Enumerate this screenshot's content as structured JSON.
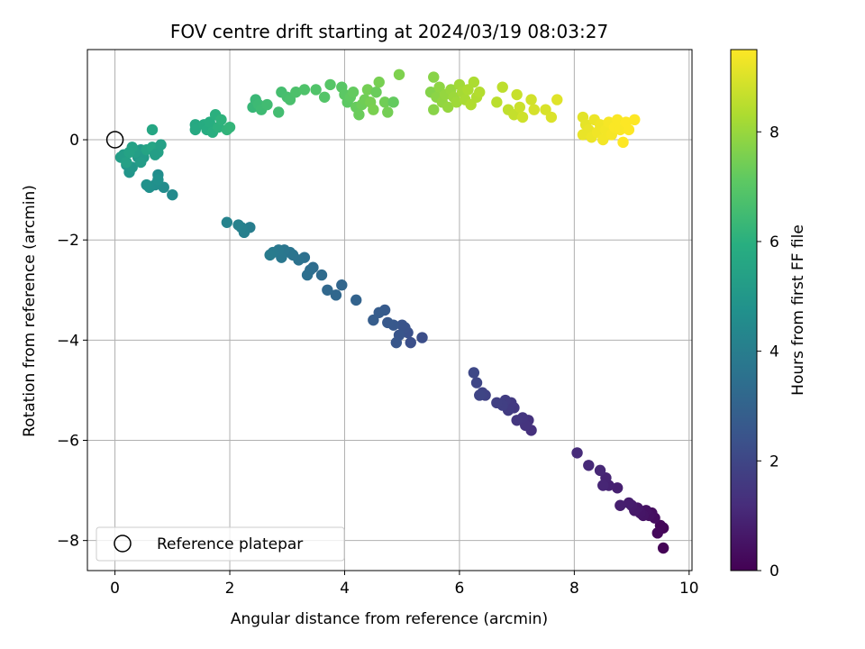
{
  "chart_data": {
    "type": "scatter",
    "title": "FOV centre drift starting at 2024/03/19 08:03:27",
    "xlabel": "Angular distance from reference (arcmin)",
    "ylabel": "Rotation from reference (arcmin)",
    "xlim": [
      -0.48,
      10.05
    ],
    "ylim": [
      -8.6,
      1.8
    ],
    "x_ticks": [
      0,
      2,
      4,
      6,
      8,
      10
    ],
    "y_ticks": [
      -8,
      -6,
      -4,
      -2,
      0
    ],
    "grid": true,
    "legend": {
      "location": "lower-left",
      "entries": [
        "Reference platepar"
      ]
    },
    "reference_point": {
      "x": 0,
      "y": 0
    },
    "colorbar": {
      "label": "Hours from first FF file",
      "ticks": [
        0,
        2,
        4,
        6,
        8
      ],
      "range": [
        0,
        9.5
      ],
      "colormap": "viridis"
    },
    "points_columns": [
      "x",
      "y",
      "hours"
    ],
    "points": [
      [
        9.55,
        -8.15,
        0.05
      ],
      [
        9.55,
        -7.75,
        0.1
      ],
      [
        9.5,
        -7.7,
        0.15
      ],
      [
        9.45,
        -7.85,
        0.2
      ],
      [
        9.4,
        -7.55,
        0.3
      ],
      [
        9.35,
        -7.45,
        0.35
      ],
      [
        9.3,
        -7.5,
        0.4
      ],
      [
        9.25,
        -7.4,
        0.45
      ],
      [
        9.2,
        -7.5,
        0.5
      ],
      [
        9.15,
        -7.45,
        0.55
      ],
      [
        9.1,
        -7.35,
        0.6
      ],
      [
        9.05,
        -7.4,
        0.65
      ],
      [
        9.0,
        -7.3,
        0.7
      ],
      [
        8.95,
        -7.25,
        0.75
      ],
      [
        8.8,
        -7.3,
        0.8
      ],
      [
        8.75,
        -6.95,
        0.85
      ],
      [
        8.6,
        -6.9,
        0.9
      ],
      [
        8.55,
        -6.75,
        0.95
      ],
      [
        8.5,
        -6.9,
        1.0
      ],
      [
        8.45,
        -6.6,
        1.05
      ],
      [
        8.25,
        -6.5,
        1.1
      ],
      [
        8.05,
        -6.25,
        1.15
      ],
      [
        7.25,
        -5.8,
        1.3
      ],
      [
        7.2,
        -5.6,
        1.35
      ],
      [
        7.15,
        -5.7,
        1.4
      ],
      [
        7.1,
        -5.55,
        1.45
      ],
      [
        7.0,
        -5.6,
        1.5
      ],
      [
        6.95,
        -5.35,
        1.55
      ],
      [
        6.9,
        -5.25,
        1.6
      ],
      [
        6.85,
        -5.4,
        1.65
      ],
      [
        6.8,
        -5.2,
        1.7
      ],
      [
        6.75,
        -5.3,
        1.75
      ],
      [
        6.65,
        -5.25,
        1.8
      ],
      [
        6.45,
        -5.1,
        1.85
      ],
      [
        6.4,
        -5.05,
        1.9
      ],
      [
        6.35,
        -5.1,
        1.95
      ],
      [
        6.3,
        -4.85,
        2.0
      ],
      [
        6.25,
        -4.65,
        2.05
      ],
      [
        5.15,
        -4.05,
        2.3
      ],
      [
        5.1,
        -3.85,
        2.35
      ],
      [
        5.05,
        -3.75,
        2.4
      ],
      [
        5.0,
        -3.7,
        2.45
      ],
      [
        4.95,
        -3.9,
        2.5
      ],
      [
        4.9,
        -4.05,
        2.55
      ],
      [
        4.85,
        -3.7,
        2.6
      ],
      [
        4.75,
        -3.65,
        2.65
      ],
      [
        4.7,
        -3.4,
        2.7
      ],
      [
        4.6,
        -3.45,
        2.75
      ],
      [
        4.5,
        -3.6,
        2.8
      ],
      [
        5.35,
        -3.95,
        2.25
      ],
      [
        4.2,
        -3.2,
        3.0
      ],
      [
        3.95,
        -2.9,
        3.1
      ],
      [
        3.85,
        -3.1,
        3.15
      ],
      [
        3.7,
        -3.0,
        3.2
      ],
      [
        3.6,
        -2.7,
        3.3
      ],
      [
        3.45,
        -2.55,
        3.35
      ],
      [
        3.4,
        -2.6,
        3.4
      ],
      [
        3.35,
        -2.7,
        3.45
      ],
      [
        3.3,
        -2.35,
        3.5
      ],
      [
        3.2,
        -2.4,
        3.55
      ],
      [
        3.1,
        -2.3,
        3.6
      ],
      [
        3.05,
        -2.25,
        3.65
      ],
      [
        2.95,
        -2.2,
        3.7
      ],
      [
        2.9,
        -2.35,
        3.75
      ],
      [
        2.85,
        -2.2,
        3.8
      ],
      [
        2.75,
        -2.25,
        3.85
      ],
      [
        2.7,
        -2.3,
        3.9
      ],
      [
        2.35,
        -1.75,
        4.0
      ],
      [
        2.25,
        -1.85,
        4.05
      ],
      [
        2.2,
        -1.75,
        4.1
      ],
      [
        2.15,
        -1.7,
        4.15
      ],
      [
        1.95,
        -1.65,
        4.2
      ],
      [
        1.0,
        -1.1,
        4.5
      ],
      [
        0.85,
        -0.95,
        4.55
      ],
      [
        0.75,
        -0.7,
        4.6
      ],
      [
        0.7,
        -0.9,
        4.65
      ],
      [
        0.6,
        -0.95,
        4.7
      ],
      [
        0.75,
        -0.8,
        4.75
      ],
      [
        0.55,
        -0.9,
        4.8
      ],
      [
        0.25,
        -0.65,
        4.9
      ],
      [
        0.2,
        -0.5,
        4.95
      ],
      [
        0.3,
        -0.55,
        5.0
      ],
      [
        0.4,
        -0.35,
        5.05
      ],
      [
        0.45,
        -0.2,
        5.1
      ],
      [
        0.5,
        -0.35,
        5.15
      ],
      [
        0.15,
        -0.3,
        5.2
      ],
      [
        0.1,
        -0.35,
        5.25
      ],
      [
        0.35,
        -0.25,
        5.3
      ],
      [
        0.2,
        -0.45,
        5.35
      ],
      [
        0.3,
        -0.15,
        5.4
      ],
      [
        0.25,
        -0.25,
        5.45
      ],
      [
        0.45,
        -0.45,
        5.2
      ],
      [
        0.55,
        -0.2,
        5.5
      ],
      [
        0.65,
        -0.15,
        5.55
      ],
      [
        0.75,
        -0.25,
        5.4
      ],
      [
        0.8,
        -0.1,
        5.35
      ],
      [
        0.65,
        0.2,
        5.6
      ],
      [
        0.7,
        -0.3,
        5.3
      ],
      [
        1.4,
        0.3,
        5.7
      ],
      [
        1.4,
        0.2,
        5.75
      ],
      [
        1.55,
        0.3,
        5.8
      ],
      [
        1.6,
        0.2,
        5.85
      ],
      [
        1.65,
        0.35,
        5.9
      ],
      [
        1.7,
        0.15,
        5.95
      ],
      [
        1.75,
        0.5,
        6.0
      ],
      [
        1.8,
        0.25,
        6.05
      ],
      [
        1.85,
        0.4,
        6.1
      ],
      [
        1.95,
        0.2,
        6.15
      ],
      [
        2.0,
        0.25,
        6.2
      ],
      [
        2.4,
        0.65,
        6.3
      ],
      [
        2.45,
        0.8,
        6.35
      ],
      [
        2.5,
        0.7,
        6.4
      ],
      [
        2.55,
        0.6,
        6.45
      ],
      [
        2.65,
        0.7,
        6.5
      ],
      [
        2.85,
        0.55,
        6.55
      ],
      [
        2.9,
        0.95,
        6.6
      ],
      [
        3.0,
        0.85,
        6.65
      ],
      [
        3.05,
        0.8,
        6.7
      ],
      [
        3.15,
        0.95,
        6.75
      ],
      [
        3.3,
        1.0,
        6.8
      ],
      [
        3.5,
        1.0,
        6.85
      ],
      [
        3.65,
        0.85,
        6.9
      ],
      [
        3.75,
        1.1,
        6.95
      ],
      [
        3.95,
        1.05,
        7.0
      ],
      [
        4.0,
        0.9,
        7.05
      ],
      [
        4.05,
        0.75,
        7.1
      ],
      [
        4.1,
        0.85,
        7.15
      ],
      [
        4.15,
        0.95,
        7.2
      ],
      [
        4.2,
        0.65,
        7.25
      ],
      [
        4.25,
        0.5,
        7.3
      ],
      [
        4.3,
        0.7,
        7.35
      ],
      [
        4.35,
        0.8,
        7.4
      ],
      [
        4.4,
        1.0,
        7.45
      ],
      [
        4.45,
        0.75,
        7.5
      ],
      [
        4.5,
        0.6,
        7.55
      ],
      [
        4.55,
        0.95,
        7.3
      ],
      [
        4.6,
        1.15,
        7.5
      ],
      [
        4.7,
        0.75,
        7.4
      ],
      [
        4.75,
        0.55,
        7.45
      ],
      [
        4.85,
        0.75,
        7.2
      ],
      [
        4.95,
        1.3,
        7.6
      ],
      [
        5.5,
        0.95,
        7.7
      ],
      [
        5.55,
        1.25,
        7.75
      ],
      [
        5.55,
        0.6,
        7.75
      ],
      [
        5.6,
        0.85,
        7.8
      ],
      [
        5.65,
        1.05,
        7.85
      ],
      [
        5.7,
        0.75,
        7.9
      ],
      [
        5.75,
        0.9,
        7.95
      ],
      [
        5.8,
        0.65,
        7.95
      ],
      [
        5.85,
        1.0,
        8.0
      ],
      [
        5.9,
        0.85,
        8.05
      ],
      [
        5.95,
        0.75,
        8.1
      ],
      [
        6.0,
        1.1,
        8.15
      ],
      [
        6.05,
        0.95,
        8.2
      ],
      [
        6.1,
        0.8,
        8.25
      ],
      [
        6.15,
        1.0,
        8.3
      ],
      [
        6.2,
        0.7,
        8.35
      ],
      [
        6.25,
        1.15,
        8.3
      ],
      [
        6.3,
        0.85,
        8.35
      ],
      [
        6.35,
        0.95,
        8.4
      ],
      [
        6.65,
        0.75,
        8.5
      ],
      [
        6.75,
        1.05,
        8.55
      ],
      [
        6.85,
        0.6,
        8.6
      ],
      [
        6.95,
        0.5,
        8.65
      ],
      [
        7.0,
        0.9,
        8.7
      ],
      [
        7.05,
        0.65,
        8.75
      ],
      [
        7.1,
        0.45,
        8.8
      ],
      [
        7.25,
        0.8,
        8.85
      ],
      [
        7.3,
        0.6,
        8.9
      ],
      [
        7.5,
        0.6,
        8.95
      ],
      [
        7.6,
        0.45,
        9.0
      ],
      [
        7.7,
        0.8,
        9.05
      ],
      [
        8.15,
        0.45,
        9.1
      ],
      [
        8.2,
        0.3,
        9.15
      ],
      [
        8.15,
        0.1,
        9.2
      ],
      [
        8.25,
        0.2,
        9.2
      ],
      [
        8.3,
        0.05,
        9.25
      ],
      [
        8.35,
        0.4,
        9.25
      ],
      [
        8.4,
        0.15,
        9.3
      ],
      [
        8.45,
        0.3,
        9.3
      ],
      [
        8.5,
        0.0,
        9.35
      ],
      [
        8.55,
        0.2,
        9.35
      ],
      [
        8.6,
        0.35,
        9.4
      ],
      [
        8.65,
        0.1,
        9.4
      ],
      [
        8.7,
        0.25,
        9.45
      ],
      [
        8.75,
        0.4,
        9.45
      ],
      [
        8.8,
        0.2,
        9.45
      ],
      [
        8.85,
        -0.05,
        9.5
      ],
      [
        8.9,
        0.35,
        9.5
      ],
      [
        8.95,
        0.2,
        9.5
      ],
      [
        9.05,
        0.4,
        9.5
      ]
    ]
  }
}
